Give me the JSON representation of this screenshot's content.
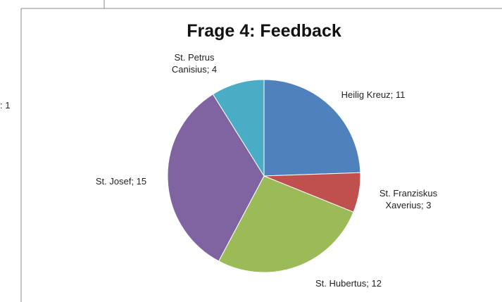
{
  "chart_data": {
    "type": "pie",
    "title": "Frage 4: Feedback",
    "categories": [
      "Heilig Kreuz",
      "St. Franziskus Xaverius",
      "St. Hubertus",
      "St. Josef",
      "St. Petrus Canisius"
    ],
    "values": [
      11,
      3,
      12,
      15,
      4
    ],
    "value_labels": [
      "Heilig Kreuz; 11",
      "St. Franziskus Xaverius; 3",
      "St. Hubertus; 12",
      "St. Josef; 15",
      "St. Petrus Canisius; 4"
    ],
    "colors": [
      "#4f81bd",
      "#c0504d",
      "#9bbb59",
      "#8064a2",
      "#4bacc6"
    ]
  },
  "cropped_text": ": 1"
}
